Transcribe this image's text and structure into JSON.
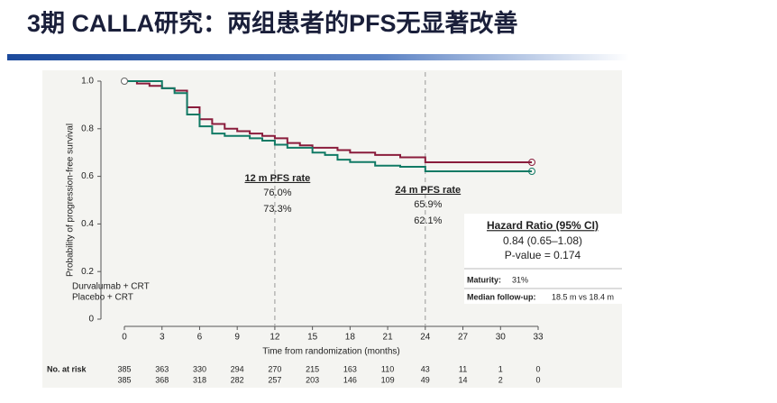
{
  "chart_data": {
    "type": "line",
    "step": true,
    "title": "3期 CALLA研究：两组患者的PFS无显著改善",
    "xlabel": "Time from randomization (months)",
    "ylabel": "Probability of progression-free survival",
    "xlim": [
      0,
      33
    ],
    "xticks": [
      0,
      3,
      6,
      9,
      12,
      15,
      18,
      21,
      24,
      27,
      30,
      33
    ],
    "ylim": [
      0,
      1
    ],
    "yticks": [
      0,
      0.2,
      0.4,
      0.6,
      0.8,
      {
        "value": 1,
        "label": "1.0"
      }
    ],
    "legend": "bottom-left",
    "series": [
      {
        "name": "Durvalumab + CRT",
        "color": "#8a1c3c",
        "x": [
          0,
          1,
          2,
          3,
          4,
          5,
          6,
          7,
          8,
          9,
          10,
          11,
          12,
          13,
          14,
          15,
          17,
          18,
          20,
          22,
          24,
          32.5
        ],
        "values": [
          1,
          0.99,
          0.98,
          0.97,
          0.96,
          0.89,
          0.84,
          0.82,
          0.8,
          0.79,
          0.78,
          0.77,
          0.76,
          0.74,
          0.73,
          0.72,
          0.71,
          0.7,
          0.69,
          0.68,
          0.659,
          0.659
        ]
      },
      {
        "name": "Placebo + CRT",
        "color": "#117a65",
        "x": [
          0,
          3,
          4,
          5,
          6,
          7,
          8,
          10,
          11,
          12,
          13,
          15,
          16,
          17,
          18,
          20,
          22,
          24,
          32.5
        ],
        "values": [
          1,
          0.97,
          0.95,
          0.86,
          0.81,
          0.78,
          0.77,
          0.76,
          0.75,
          0.733,
          0.72,
          0.7,
          0.69,
          0.67,
          0.66,
          0.645,
          0.64,
          0.621,
          0.621
        ]
      }
    ],
    "annotations": [
      {
        "x": 12,
        "title": "12 m PFS rate",
        "labels": [
          "76.0%",
          "73.3%"
        ]
      },
      {
        "x": 24,
        "title": "24 m PFS rate",
        "labels": [
          "65.9%",
          "62.1%"
        ]
      }
    ],
    "hazard_box": {
      "title": "Hazard Ratio (95% CI)",
      "hr": "0.84 (0.65–1.08)",
      "p": "P-value = 0.174",
      "maturity_label": "Maturity:",
      "maturity": "31%",
      "followup_label": "Median follow-up:",
      "followup": "18.5 m vs 18.4 m"
    },
    "risk_table": {
      "title": "No. at risk",
      "rows": [
        [
          "385",
          "363",
          "330",
          "294",
          "270",
          "215",
          "163",
          "110",
          "43",
          "11",
          "1",
          "0"
        ],
        [
          "385",
          "368",
          "318",
          "282",
          "257",
          "203",
          "146",
          "109",
          "49",
          "14",
          "2",
          "0"
        ]
      ]
    }
  }
}
